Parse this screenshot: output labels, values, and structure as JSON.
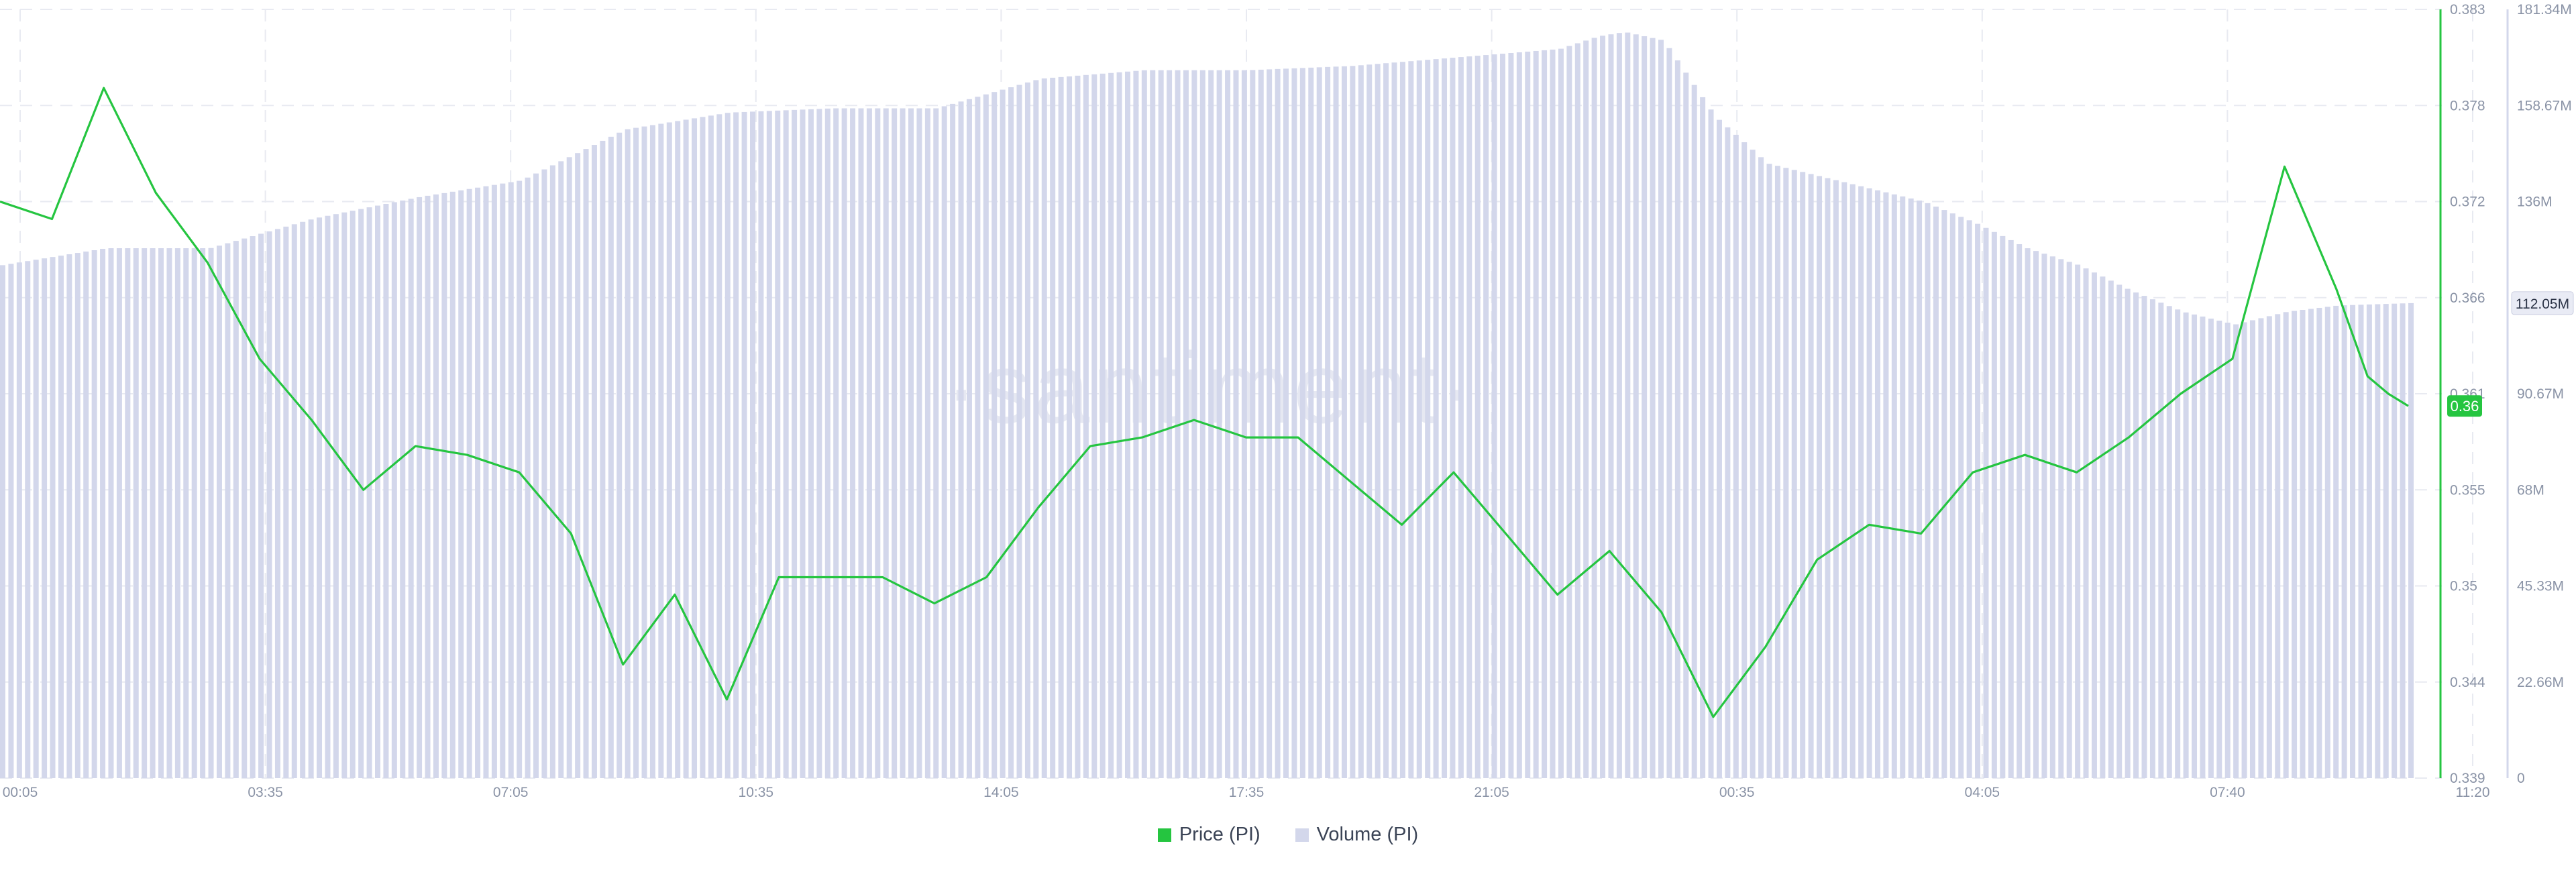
{
  "chart_data": {
    "type": "line",
    "watermark": "·santiment·",
    "x_ticks": [
      "00:05",
      "03:35",
      "07:05",
      "10:35",
      "14:05",
      "17:35",
      "21:05",
      "00:35",
      "04:05",
      "07:40",
      "11:20"
    ],
    "price_axis": {
      "ticks": [
        "0.383",
        "0.378",
        "0.372",
        "0.366",
        "0.361",
        "0.355",
        "0.35",
        "0.344",
        "0.339"
      ],
      "range": [
        0.339,
        0.383
      ],
      "current_label": "0.36",
      "color": "#25c540"
    },
    "volume_axis": {
      "ticks": [
        "181.34M",
        "158.67M",
        "136M",
        "112.05M",
        "90.67M",
        "68M",
        "45.33M",
        "22.66M",
        "0"
      ],
      "range": [
        0,
        181.34
      ],
      "current_label": "112.05M",
      "color": "#d3d7eb"
    },
    "series": [
      {
        "name": "Price (PI)",
        "kind": "line",
        "color": "#25c540",
        "x": [
          0,
          0.0216,
          0.0431,
          0.0647,
          0.0862,
          0.1078,
          0.1294,
          0.1509,
          0.1725,
          0.194,
          0.2156,
          0.2371,
          0.2587,
          0.2802,
          0.3018,
          0.3234,
          0.3449,
          0.3665,
          0.388,
          0.4096,
          0.4312,
          0.4527,
          0.4743,
          0.4958,
          0.5174,
          0.539,
          0.5605,
          0.5821,
          0.6036,
          0.6252,
          0.6467,
          0.6683,
          0.6899,
          0.7114,
          0.733,
          0.7545,
          0.7761,
          0.7977,
          0.8192,
          0.8408,
          0.8623,
          0.8839,
          0.9055,
          0.927,
          0.9486,
          0.9701,
          0.9831,
          0.9917,
          1
        ],
        "y": [
          0.372,
          0.371,
          0.3785,
          0.3725,
          0.3685,
          0.363,
          0.3595,
          0.3555,
          0.358,
          0.3575,
          0.3565,
          0.353,
          0.3455,
          0.3495,
          0.3435,
          0.3505,
          0.3505,
          0.3505,
          0.349,
          0.3505,
          0.3545,
          0.358,
          0.3585,
          0.3595,
          0.3585,
          0.3585,
          0.356,
          0.3535,
          0.3565,
          0.353,
          0.3495,
          0.352,
          0.3485,
          0.3425,
          0.3465,
          0.3515,
          0.3535,
          0.353,
          0.3565,
          0.3575,
          0.3565,
          0.3585,
          0.361,
          0.363,
          0.374,
          0.367,
          0.362,
          0.361,
          0.3603
        ]
      },
      {
        "name": "Volume (PI)",
        "kind": "bar",
        "color": "#d3d7eb",
        "x": [
          0,
          0.0431,
          0.0862,
          0.1294,
          0.1725,
          0.2156,
          0.2587,
          0.3018,
          0.3449,
          0.388,
          0.4312,
          0.4743,
          0.5174,
          0.5605,
          0.6036,
          0.6467,
          0.6629,
          0.6737,
          0.6899,
          0.7114,
          0.733,
          0.7545,
          0.7761,
          0.7977,
          0.8192,
          0.8408,
          0.8623,
          0.8839,
          0.9055,
          0.927,
          0.9486,
          0.9701,
          1
        ],
        "y": [
          121,
          125,
          125,
          132,
          137,
          141,
          153,
          157,
          158,
          158,
          165,
          167,
          167,
          168,
          170,
          172,
          175,
          176,
          174,
          156,
          145,
          142,
          139,
          136,
          131,
          125,
          121,
          115,
          110,
          107,
          110,
          111.5,
          112.05
        ]
      }
    ],
    "legend_position": "bottom-center",
    "grid": true
  }
}
